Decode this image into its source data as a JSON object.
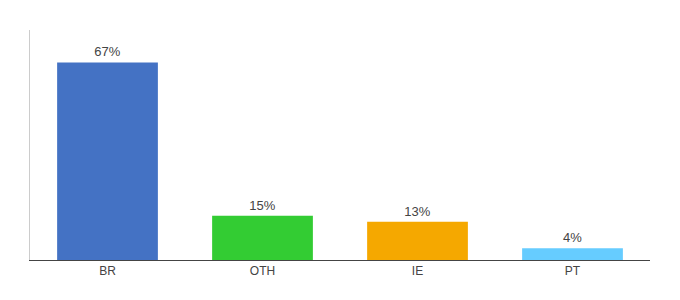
{
  "chart_data": {
    "type": "bar",
    "categories": [
      "BR",
      "OTH",
      "IE",
      "PT"
    ],
    "values": [
      67,
      15,
      13,
      4
    ],
    "value_labels": [
      "67%",
      "15%",
      "13%",
      "4%"
    ],
    "colors": [
      "#4472c4",
      "#33cc33",
      "#f5a800",
      "#66ccff"
    ],
    "data_labels": true,
    "ylim": [
      0,
      78
    ],
    "tick_labels": "x",
    "grid": false
  }
}
